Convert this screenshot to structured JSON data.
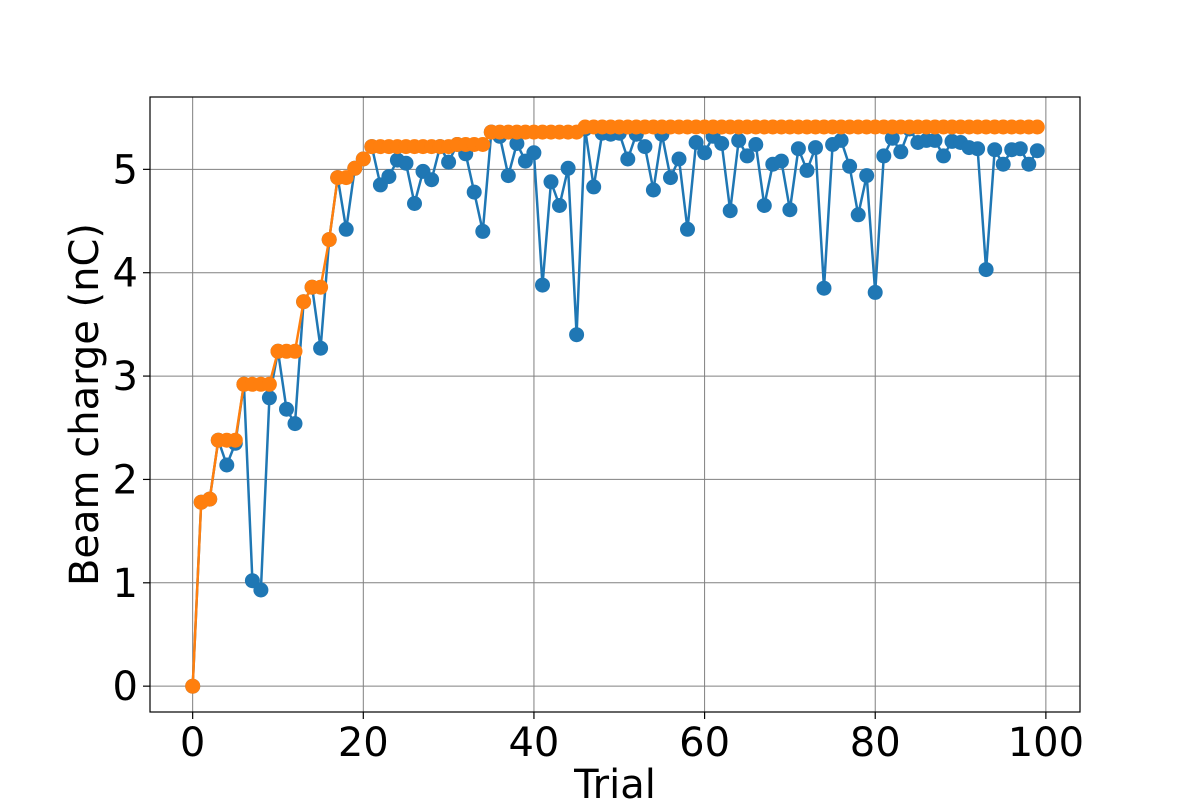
{
  "chart_data": {
    "type": "line",
    "xlabel": "Trial",
    "ylabel": "Beam charge (nC)",
    "xlim": [
      -5,
      104
    ],
    "ylim": [
      -0.25,
      5.7
    ],
    "xticks": [
      0,
      20,
      40,
      60,
      80,
      100
    ],
    "yticks": [
      0,
      1,
      2,
      3,
      4,
      5
    ],
    "grid": true,
    "legend": "none",
    "series": [
      {
        "color": "#1f77b4",
        "marker": "circle",
        "x": [
          0,
          1,
          2,
          3,
          4,
          5,
          6,
          7,
          8,
          9,
          10,
          11,
          12,
          13,
          14,
          15,
          16,
          17,
          18,
          19,
          20,
          21,
          22,
          23,
          24,
          25,
          26,
          27,
          28,
          29,
          30,
          31,
          32,
          33,
          34,
          35,
          36,
          37,
          38,
          39,
          40,
          41,
          42,
          43,
          44,
          45,
          46,
          47,
          48,
          49,
          50,
          51,
          52,
          53,
          54,
          55,
          56,
          57,
          58,
          59,
          60,
          61,
          62,
          63,
          64,
          65,
          66,
          67,
          68,
          69,
          70,
          71,
          72,
          73,
          74,
          75,
          76,
          77,
          78,
          79,
          80,
          81,
          82,
          83,
          84,
          85,
          86,
          87,
          88,
          89,
          90,
          91,
          92,
          93,
          94,
          95,
          96,
          97,
          98,
          99
        ],
        "y": [
          0.0,
          1.78,
          1.81,
          2.38,
          2.14,
          2.35,
          2.92,
          1.02,
          0.93,
          2.79,
          3.24,
          2.68,
          2.54,
          3.72,
          3.86,
          3.27,
          4.32,
          4.92,
          4.42,
          5.01,
          5.1,
          5.22,
          4.85,
          4.93,
          5.09,
          5.06,
          4.67,
          4.98,
          4.9,
          5.22,
          5.07,
          5.24,
          5.15,
          4.78,
          4.4,
          5.36,
          5.32,
          4.94,
          5.25,
          5.08,
          5.16,
          3.88,
          4.88,
          4.65,
          5.01,
          3.4,
          5.39,
          4.83,
          5.35,
          5.34,
          5.35,
          5.1,
          5.34,
          5.22,
          4.8,
          5.34,
          4.92,
          5.1,
          4.42,
          5.26,
          5.16,
          5.32,
          5.25,
          4.6,
          5.28,
          5.13,
          5.24,
          4.65,
          5.05,
          5.08,
          4.61,
          5.2,
          4.99,
          5.21,
          3.85,
          5.24,
          5.28,
          5.03,
          4.56,
          4.94,
          3.81,
          5.13,
          5.3,
          5.17,
          5.39,
          5.26,
          5.28,
          5.28,
          5.13,
          5.27,
          5.26,
          5.21,
          5.2,
          4.03,
          5.19,
          5.05,
          5.19,
          5.2,
          5.05,
          5.18
        ]
      },
      {
        "color": "#ff7f0e",
        "marker": "circle",
        "x": [
          0,
          1,
          2,
          3,
          4,
          5,
          6,
          7,
          8,
          9,
          10,
          11,
          12,
          13,
          14,
          15,
          16,
          17,
          18,
          19,
          20,
          21,
          22,
          23,
          24,
          25,
          26,
          27,
          28,
          29,
          30,
          31,
          32,
          33,
          34,
          35,
          36,
          37,
          38,
          39,
          40,
          41,
          42,
          43,
          44,
          45,
          46,
          47,
          48,
          49,
          50,
          51,
          52,
          53,
          54,
          55,
          56,
          57,
          58,
          59,
          60,
          61,
          62,
          63,
          64,
          65,
          66,
          67,
          68,
          69,
          70,
          71,
          72,
          73,
          74,
          75,
          76,
          77,
          78,
          79,
          80,
          81,
          82,
          83,
          84,
          85,
          86,
          87,
          88,
          89,
          90,
          91,
          92,
          93,
          94,
          95,
          96,
          97,
          98,
          99
        ],
        "y": [
          0.0,
          1.78,
          1.81,
          2.38,
          2.38,
          2.38,
          2.92,
          2.92,
          2.92,
          2.92,
          3.24,
          3.24,
          3.24,
          3.72,
          3.86,
          3.86,
          4.32,
          4.92,
          4.92,
          5.01,
          5.1,
          5.22,
          5.22,
          5.22,
          5.22,
          5.22,
          5.22,
          5.22,
          5.22,
          5.22,
          5.22,
          5.24,
          5.24,
          5.24,
          5.24,
          5.36,
          5.36,
          5.36,
          5.36,
          5.36,
          5.36,
          5.36,
          5.36,
          5.36,
          5.36,
          5.36,
          5.41,
          5.41,
          5.41,
          5.41,
          5.41,
          5.41,
          5.41,
          5.41,
          5.41,
          5.41,
          5.41,
          5.41,
          5.41,
          5.41,
          5.41,
          5.41,
          5.41,
          5.41,
          5.41,
          5.41,
          5.41,
          5.41,
          5.41,
          5.41,
          5.41,
          5.41,
          5.41,
          5.41,
          5.41,
          5.41,
          5.41,
          5.41,
          5.41,
          5.41,
          5.41,
          5.41,
          5.41,
          5.41,
          5.41,
          5.41,
          5.41,
          5.41,
          5.41,
          5.41,
          5.41,
          5.41,
          5.41,
          5.41,
          5.41,
          5.41,
          5.41,
          5.41,
          5.41,
          5.41
        ]
      }
    ]
  }
}
